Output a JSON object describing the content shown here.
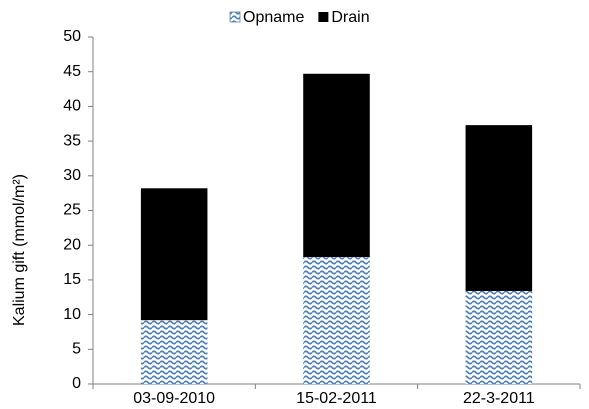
{
  "chart_data": {
    "type": "stacked-bar",
    "y_label": "Kalium gift (mmol/m²)",
    "categories": [
      "03-09-2010",
      "15-02-2011",
      "22-3-2011"
    ],
    "series": [
      {
        "name": "Opname",
        "color": "#4f81bd",
        "pattern": "wave",
        "values": [
          9.2,
          18.3,
          13.4
        ]
      },
      {
        "name": "Drain",
        "color": "#000000",
        "values": [
          19.0,
          26.4,
          23.9
        ]
      }
    ],
    "ylim": [
      0,
      50
    ],
    "yticks": [
      0,
      5,
      10,
      15,
      20,
      25,
      30,
      35,
      40,
      45,
      50
    ],
    "grid": false,
    "legend": "top"
  }
}
